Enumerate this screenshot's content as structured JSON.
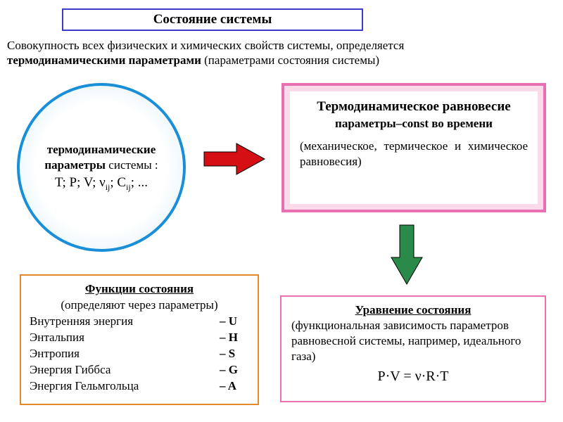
{
  "title": "Состояние системы",
  "intro_text": "Совокупность всех физических и химических свойств системы, определяется",
  "intro_bold": "термодинамическими параметрами",
  "intro_paren": " (параметрами состояния системы)",
  "circle": {
    "line1_bold": "термодинамические параметры",
    "line1_rest": " системы :",
    "line2": "T; P; V; ν",
    "line2_sub1": "ij",
    "line2_mid": "; C",
    "line2_sub2": "ij",
    "line2_end": "; ..."
  },
  "arrow_red": {
    "fill": "#d60f14",
    "stroke": "#000000"
  },
  "arrow_green": {
    "fill": "#2a8a4a",
    "stroke": "#000000"
  },
  "equilibrium": {
    "title": "Термодинамическое равновесие",
    "sub": "параметры–const во времени",
    "body": "(механическое, термическое и химическое равновесия)"
  },
  "functions": {
    "title": "Функции состояния",
    "sub": "(определяют через параметры)",
    "rows": [
      {
        "name": "Внутренняя энергия",
        "sym": "– U"
      },
      {
        "name": "Энтальпия",
        "sym": "– H"
      },
      {
        "name": "Энтропия",
        "sym": "– S"
      },
      {
        "name": "Энергия Гиббса",
        "sym": "– G"
      },
      {
        "name": "Энергия Гельмгольца",
        "sym": "– A"
      }
    ]
  },
  "state_eq": {
    "title": "Уравнение состояния",
    "body": "(функциональная зависимость параметров равновесной системы, например, идеального газа)",
    "equation": "P·V = ν·R·T"
  },
  "colors": {
    "title_border": "#3b3bcc",
    "circle_border": "#1a8fd9",
    "eq_border": "#e86fb0",
    "func_border": "#e28a2b"
  }
}
